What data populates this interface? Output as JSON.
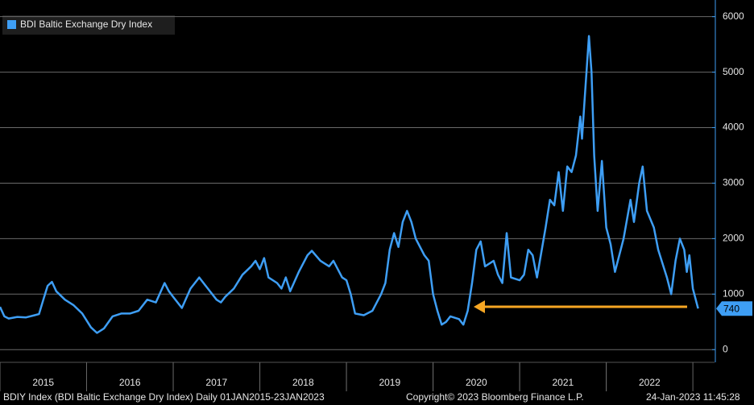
{
  "chart_data": {
    "type": "line",
    "series": [
      {
        "name": "BDI Baltic Exchange Dry Index",
        "color": "#3e9ef4",
        "x": [
          2015.0,
          2015.05,
          2015.1,
          2015.2,
          2015.3,
          2015.4,
          2015.45,
          2015.5,
          2015.55,
          2015.6,
          2015.65,
          2015.75,
          2015.85,
          2015.95,
          2016.05,
          2016.12,
          2016.2,
          2016.3,
          2016.4,
          2016.5,
          2016.6,
          2016.7,
          2016.8,
          2016.9,
          2016.95,
          2017.0,
          2017.1,
          2017.2,
          2017.3,
          2017.4,
          2017.5,
          2017.55,
          2017.6,
          2017.7,
          2017.8,
          2017.9,
          2017.95,
          2018.0,
          2018.05,
          2018.1,
          2018.2,
          2018.25,
          2018.3,
          2018.35,
          2018.45,
          2018.55,
          2018.6,
          2018.7,
          2018.8,
          2018.85,
          2018.95,
          2019.0,
          2019.05,
          2019.1,
          2019.2,
          2019.3,
          2019.4,
          2019.45,
          2019.5,
          2019.55,
          2019.6,
          2019.65,
          2019.7,
          2019.75,
          2019.8,
          2019.9,
          2019.95,
          2020.0,
          2020.05,
          2020.1,
          2020.15,
          2020.2,
          2020.3,
          2020.35,
          2020.4,
          2020.45,
          2020.5,
          2020.55,
          2020.6,
          2020.7,
          2020.75,
          2020.8,
          2020.85,
          2020.9,
          2021.0,
          2021.05,
          2021.1,
          2021.15,
          2021.2,
          2021.3,
          2021.35,
          2021.4,
          2021.45,
          2021.5,
          2021.55,
          2021.6,
          2021.65,
          2021.7,
          2021.72,
          2021.75,
          2021.8,
          2021.83,
          2021.86,
          2021.9,
          2021.95,
          2022.0,
          2022.05,
          2022.1,
          2022.2,
          2022.28,
          2022.32,
          2022.38,
          2022.42,
          2022.47,
          2022.55,
          2022.6,
          2022.7,
          2022.75,
          2022.8,
          2022.85,
          2022.9,
          2022.93,
          2022.96,
          2023.0,
          2023.06
        ],
        "values": [
          770,
          600,
          560,
          590,
          580,
          620,
          640,
          900,
          1150,
          1220,
          1050,
          900,
          800,
          650,
          400,
          300,
          380,
          600,
          650,
          650,
          700,
          900,
          850,
          1200,
          1050,
          950,
          750,
          1100,
          1300,
          1100,
          900,
          850,
          950,
          1100,
          1350,
          1500,
          1600,
          1450,
          1650,
          1300,
          1200,
          1100,
          1300,
          1050,
          1400,
          1700,
          1780,
          1600,
          1500,
          1600,
          1300,
          1250,
          1000,
          650,
          620,
          700,
          1000,
          1200,
          1800,
          2100,
          1850,
          2300,
          2500,
          2300,
          2000,
          1700,
          1600,
          1000,
          700,
          450,
          500,
          600,
          550,
          450,
          700,
          1200,
          1800,
          1950,
          1500,
          1600,
          1350,
          1200,
          2100,
          1300,
          1250,
          1350,
          1800,
          1700,
          1300,
          2200,
          2700,
          2600,
          3200,
          2500,
          3300,
          3200,
          3500,
          4200,
          3800,
          4500,
          5650,
          5000,
          3500,
          2500,
          3400,
          2200,
          1900,
          1400,
          2000,
          2700,
          2300,
          3000,
          3300,
          2500,
          2200,
          1800,
          1300,
          1000,
          1600,
          2000,
          1800,
          1400,
          1700,
          1100,
          740
        ]
      }
    ],
    "last_value": 740,
    "xlim": [
      2015,
      2023.25
    ],
    "xticks": [
      2015,
      2016,
      2017,
      2018,
      2019,
      2020,
      2021,
      2022
    ],
    "ylim": [
      -200,
      6300
    ],
    "yticks": [
      0,
      1000,
      2000,
      3000,
      4000,
      5000,
      6000
    ],
    "grid": true,
    "footer": [
      "BDIY Index (BDI Baltic Exchange Dry Index)  Daily 01JAN2015-23JAN2023",
      "Copyright© 2023 Bloomberg Finance L.P.",
      "24-Jan-2023 11:45:28"
    ]
  }
}
